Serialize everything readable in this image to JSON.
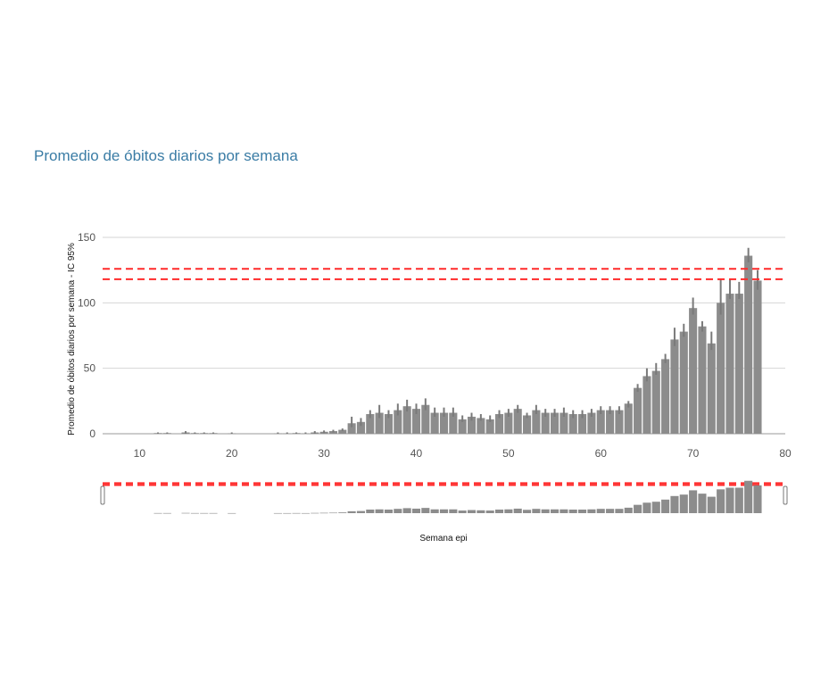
{
  "title": "Promedio de óbitos diarios por semana",
  "chart_data": {
    "type": "bar",
    "title": "Promedio de óbitos diarios por semana",
    "xlabel": "Semana epi",
    "ylabel": "Promedio de óbitos diarios por semana - IC 95%",
    "xlim": [
      6,
      80
    ],
    "ylim": [
      0,
      150
    ],
    "xticks": [
      10,
      20,
      30,
      40,
      50,
      60,
      70,
      80
    ],
    "yticks": [
      0,
      50,
      100,
      150
    ],
    "grid": true,
    "bar_color": "#8c8c8c",
    "error_color": "#7a7a7a",
    "reference_color": "#ff2a2a",
    "reference_lines": [
      118,
      126
    ],
    "x": [
      12,
      13,
      15,
      16,
      17,
      18,
      20,
      25,
      26,
      27,
      28,
      29,
      30,
      31,
      32,
      33,
      34,
      35,
      36,
      37,
      38,
      39,
      40,
      41,
      42,
      43,
      44,
      45,
      46,
      47,
      48,
      49,
      50,
      51,
      52,
      53,
      54,
      55,
      56,
      57,
      58,
      59,
      60,
      61,
      62,
      63,
      64,
      65,
      66,
      67,
      68,
      69,
      70,
      71,
      72,
      73,
      74,
      75,
      76,
      77
    ],
    "values": [
      0.5,
      0.5,
      1,
      0.5,
      0.5,
      0.5,
      0.3,
      0.3,
      0.3,
      0.5,
      0.3,
      1,
      1.5,
      2,
      3,
      8,
      9,
      15,
      16,
      15,
      18,
      21,
      19,
      22,
      16,
      16,
      16,
      11,
      13,
      12,
      11,
      15,
      16,
      19,
      14,
      18,
      16,
      16,
      16,
      15,
      15,
      16,
      18,
      18,
      18,
      23,
      35,
      44,
      48,
      57,
      72,
      78,
      96,
      82,
      69,
      100,
      107,
      107,
      136,
      117
    ],
    "error_low": [
      0,
      0,
      0,
      0,
      0,
      0,
      0,
      0,
      0,
      0,
      0,
      0,
      0.5,
      1,
      2,
      5,
      6,
      12,
      12,
      12,
      14,
      17,
      15,
      18,
      13,
      13,
      13,
      9,
      10,
      10,
      9,
      12,
      13,
      16,
      12,
      15,
      13,
      13,
      13,
      12,
      12,
      13,
      15,
      15,
      15,
      20,
      32,
      40,
      45,
      54,
      67,
      74,
      91,
      78,
      64,
      91,
      103,
      103,
      131,
      110
    ],
    "error_high": [
      1,
      1,
      2,
      1,
      1,
      1,
      1,
      1,
      1,
      1,
      1,
      2,
      2.5,
      3,
      4,
      13,
      12,
      18,
      22,
      18,
      23,
      26,
      23,
      27,
      20,
      20,
      20,
      14,
      16,
      15,
      14,
      18,
      19,
      22,
      16,
      22,
      19,
      19,
      20,
      18,
      18,
      19,
      21,
      21,
      21,
      25,
      38,
      50,
      54,
      61,
      81,
      84,
      104,
      86,
      78,
      118,
      118,
      116,
      142,
      125
    ],
    "navigator": true
  }
}
